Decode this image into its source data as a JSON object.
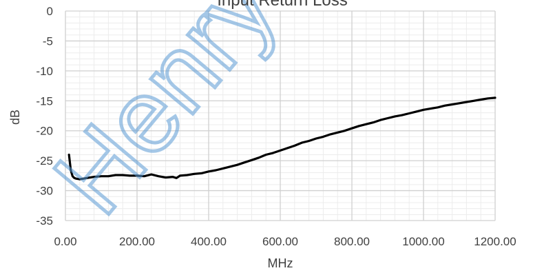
{
  "chart_data": {
    "type": "line",
    "title": "Input Return Loss",
    "xlabel": "MHz",
    "ylabel": "dB",
    "xlim": [
      0,
      1200
    ],
    "ylim": [
      -35,
      0
    ],
    "x_ticks": [
      0,
      200,
      400,
      600,
      800,
      1000,
      1200
    ],
    "x_tick_labels": [
      "0.00",
      "200.00",
      "400.00",
      "600.00",
      "800.00",
      "1000.00",
      "1200.00"
    ],
    "y_ticks": [
      0,
      -5,
      -10,
      -15,
      -20,
      -25,
      -30,
      -35
    ],
    "y_tick_labels": [
      "0",
      "-5",
      "-10",
      "-15",
      "-20",
      "-25",
      "-30",
      "-35"
    ],
    "grid": true,
    "legend": "none",
    "line_color": "#000000",
    "series": [
      {
        "x": [
          10,
          15,
          20,
          25,
          30,
          40,
          50,
          60,
          80,
          100,
          120,
          140,
          160,
          180,
          200,
          220,
          240,
          260,
          280,
          300,
          310,
          320,
          340,
          360,
          380,
          400,
          420,
          440,
          460,
          480,
          500,
          520,
          540,
          560,
          580,
          600,
          620,
          640,
          660,
          680,
          700,
          720,
          740,
          760,
          780,
          800,
          820,
          840,
          860,
          880,
          900,
          920,
          940,
          960,
          980,
          1000,
          1020,
          1040,
          1060,
          1080,
          1100,
          1120,
          1140,
          1160,
          1180,
          1200
        ],
        "values": [
          -24.0,
          -26.6,
          -27.6,
          -27.9,
          -28.0,
          -28.1,
          -28.0,
          -27.9,
          -27.7,
          -27.6,
          -27.6,
          -27.4,
          -27.4,
          -27.5,
          -27.5,
          -27.6,
          -27.3,
          -27.6,
          -27.8,
          -27.7,
          -27.9,
          -27.5,
          -27.4,
          -27.2,
          -27.1,
          -26.8,
          -26.6,
          -26.3,
          -26.0,
          -25.7,
          -25.3,
          -24.9,
          -24.5,
          -24.0,
          -23.7,
          -23.3,
          -22.9,
          -22.5,
          -22.0,
          -21.7,
          -21.3,
          -21.0,
          -20.6,
          -20.3,
          -20.0,
          -19.6,
          -19.2,
          -18.9,
          -18.6,
          -18.2,
          -17.9,
          -17.6,
          -17.4,
          -17.1,
          -16.8,
          -16.5,
          -16.3,
          -16.1,
          -15.8,
          -15.6,
          -15.4,
          -15.2,
          -15.0,
          -14.8,
          -14.6,
          -14.5
        ]
      }
    ]
  },
  "watermark": {
    "text": "Henry"
  }
}
